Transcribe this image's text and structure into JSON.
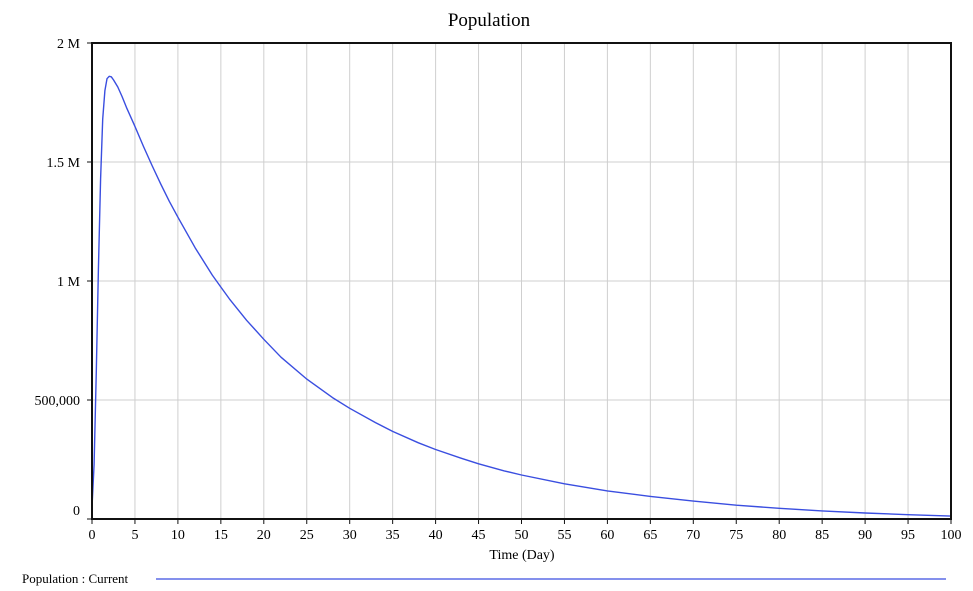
{
  "chart_data": {
    "type": "line",
    "title": "Population",
    "xlabel": "Time (Day)",
    "ylabel": "",
    "xlim": [
      0,
      100
    ],
    "ylim": [
      0,
      2000000
    ],
    "grid": true,
    "legend_position": "bottom-left",
    "x_ticks": [
      "0",
      "5",
      "10",
      "15",
      "20",
      "25",
      "30",
      "35",
      "40",
      "45",
      "50",
      "55",
      "60",
      "65",
      "70",
      "75",
      "80",
      "85",
      "90",
      "95",
      "100"
    ],
    "y_ticks": [
      "0",
      "500,000",
      "1 M",
      "1.5 M",
      "2 M"
    ],
    "series": [
      {
        "name": "Population : Current",
        "color": "#3a4ee0",
        "x": [
          0,
          0.25,
          0.5,
          0.75,
          1,
          1.25,
          1.5,
          1.75,
          2,
          2.25,
          2.5,
          3,
          3.5,
          4,
          5,
          6,
          7,
          8,
          9,
          10,
          12,
          14,
          15,
          16,
          18,
          20,
          22,
          25,
          28,
          30,
          33,
          35,
          38,
          40,
          43,
          45,
          48,
          50,
          55,
          60,
          65,
          70,
          75,
          80,
          85,
          90,
          95,
          100
        ],
        "values": [
          50000,
          230000,
          620000,
          1050000,
          1430000,
          1680000,
          1800000,
          1850000,
          1860000,
          1858000,
          1845000,
          1815000,
          1775000,
          1730000,
          1650000,
          1565000,
          1485000,
          1408000,
          1335000,
          1268000,
          1140000,
          1025000,
          975000,
          925000,
          835000,
          755000,
          680000,
          588000,
          510000,
          465000,
          405000,
          368000,
          320000,
          292000,
          255000,
          232000,
          202000,
          185000,
          148000,
          118000,
          95000,
          75000,
          58000,
          45000,
          34000,
          25000,
          18000,
          12000
        ]
      }
    ]
  }
}
